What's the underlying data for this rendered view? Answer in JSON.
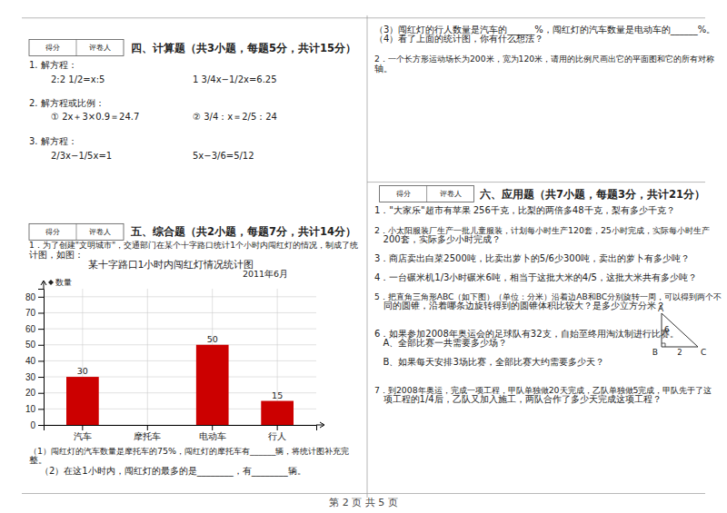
{
  "chart_data": {
    "type": "bar",
    "title": "某十字路口1小时内闯红灯情况统计图",
    "subtitle": "2011年6月",
    "ylabel": "数量",
    "categories": [
      "汽车",
      "摩托车",
      "电动车",
      "行人"
    ],
    "values": [
      30,
      0,
      50,
      15
    ],
    "value_labels": [
      "30",
      null,
      "50",
      "15"
    ],
    "data_labels": true,
    "color": "#cc0000",
    "ylim": [
      0,
      85
    ],
    "yticks": [
      0,
      10,
      20,
      30,
      40,
      50,
      60,
      70,
      80
    ],
    "grid": true,
    "annotations": [
      "四、计算题（共3小题，每题5分，共计15分）",
      "五、综合题（共2小题，每题7分，共计14分）",
      "六、应用题（共7小题，每题3分，共计21分）",
      "1. 解方程：",
      "2:2 1/2=x:5",
      "1 3/4x−1/2x=6.25",
      "2. 解方程或比例：",
      "① 2x＋3×0.9＝24.7",
      "② 3/4：x＝2/5：24",
      "3. 解方程：",
      "2/3x−1/5x=1",
      "5x−3/6=5/12",
      "1．为了创建\"文明城市\"，交通部门在某个十字路口统计1个小时内闯红灯的情况，制成了统",
      "计图，如图：",
      "（1）闯红灯的汽车数量是摩托车的75%，闯红灯的摩托车有______辆，将统计图补充完",
      "整。",
      "（2）在这1小时内，闯红灯的最多的是________，有________辆。",
      "（3）闯红灯的行人数量是汽车的______%，闯红灯的汽车数量是电动车的______%。",
      "（4）看了上面的统计图，你有什么想法？",
      "2．一个长方形运动场长为200米，宽为120米，请用的比例尺画出它的平面图和它的所有对称",
      "轴。",
      "1．\"大家乐\"超市有苹果 256千克，比梨的两倍多48千克，梨有多少千克？",
      "2．小太阳服装厂生产一批儿童服装，计划每小时生产120套，25小时完成，实际每小时生产",
      "   200套，实际多少小时完成？",
      "3．商店卖出白菜2500吨，比卖出萝卜的5/6少300吨，卖出的萝卜有多少吨？",
      "4．一台碾米机1/3小时碾米6吨，相当于这批大米的4/5，这批大米共有多少吨？",
      "5．把直角三角形ABC（如下图）（单位：分米）沿着边AB和BC分别旋转一周，可以得到两个不",
      "   同的圆锥，沿着哪条边旋转得到的圆锥体积比较大？是多少立方分米？",
      "6．如果参加2008年奥运会的足球队有32支，自始至终用淘汰制进行比赛。",
      "   A、全部比赛一共需要多少场？",
      "   B、如果每天安排3场比赛，全部比赛大约需要多少天？",
      "7．到2008年奥运，完成一项工程，甲队单独做20天完成，乙队单独做5完成，甲队先于了这",
      "   项工程的1/4后，乙队又加入施工，两队合作了多少天完成这项工程？",
      "A",
      "B",
      "C",
      "6",
      "2",
      "第 2 页 共 5 页",
      "得分",
      "评卷人"
    ]
  }
}
